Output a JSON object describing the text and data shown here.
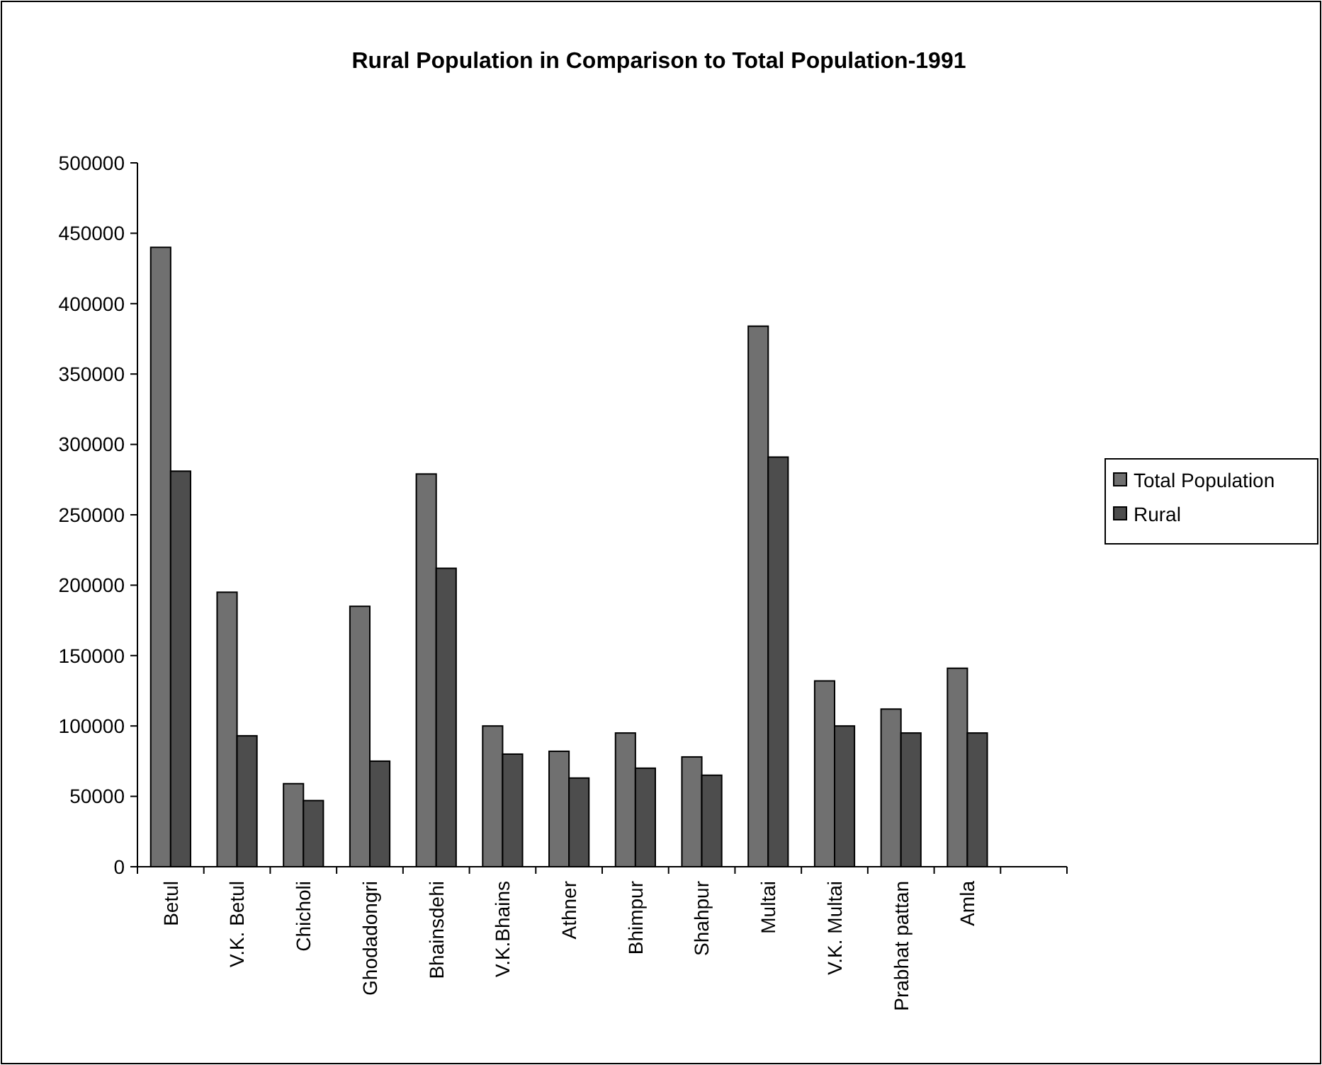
{
  "chart_data": {
    "type": "bar",
    "title": "Rural Population in Comparison to Total Population-1991",
    "categories": [
      "Betul",
      "V.K. Betul",
      "Chicholi",
      "Ghodadongri",
      "Bhainsdehi",
      "V.K.Bhains",
      "Athner",
      "Bhimpur",
      "Shahpur",
      "Multai",
      "V.K. Multai",
      "Prabhat pattan",
      "Amla",
      null
    ],
    "series": [
      {
        "name": "Total Population",
        "color": "#707070",
        "values": [
          440000,
          195000,
          59000,
          185000,
          279000,
          100000,
          82000,
          95000,
          78000,
          384000,
          132000,
          112000,
          141000,
          null
        ]
      },
      {
        "name": "Rural",
        "color": "#4d4d4d",
        "values": [
          281000,
          93000,
          47000,
          75000,
          212000,
          80000,
          63000,
          70000,
          65000,
          291000,
          100000,
          95000,
          95000,
          null
        ]
      }
    ],
    "ylim": [
      0,
      500000
    ],
    "yticks": [
      0,
      50000,
      100000,
      150000,
      200000,
      250000,
      300000,
      350000,
      400000,
      450000,
      500000
    ],
    "grid": false,
    "legend": "right"
  }
}
